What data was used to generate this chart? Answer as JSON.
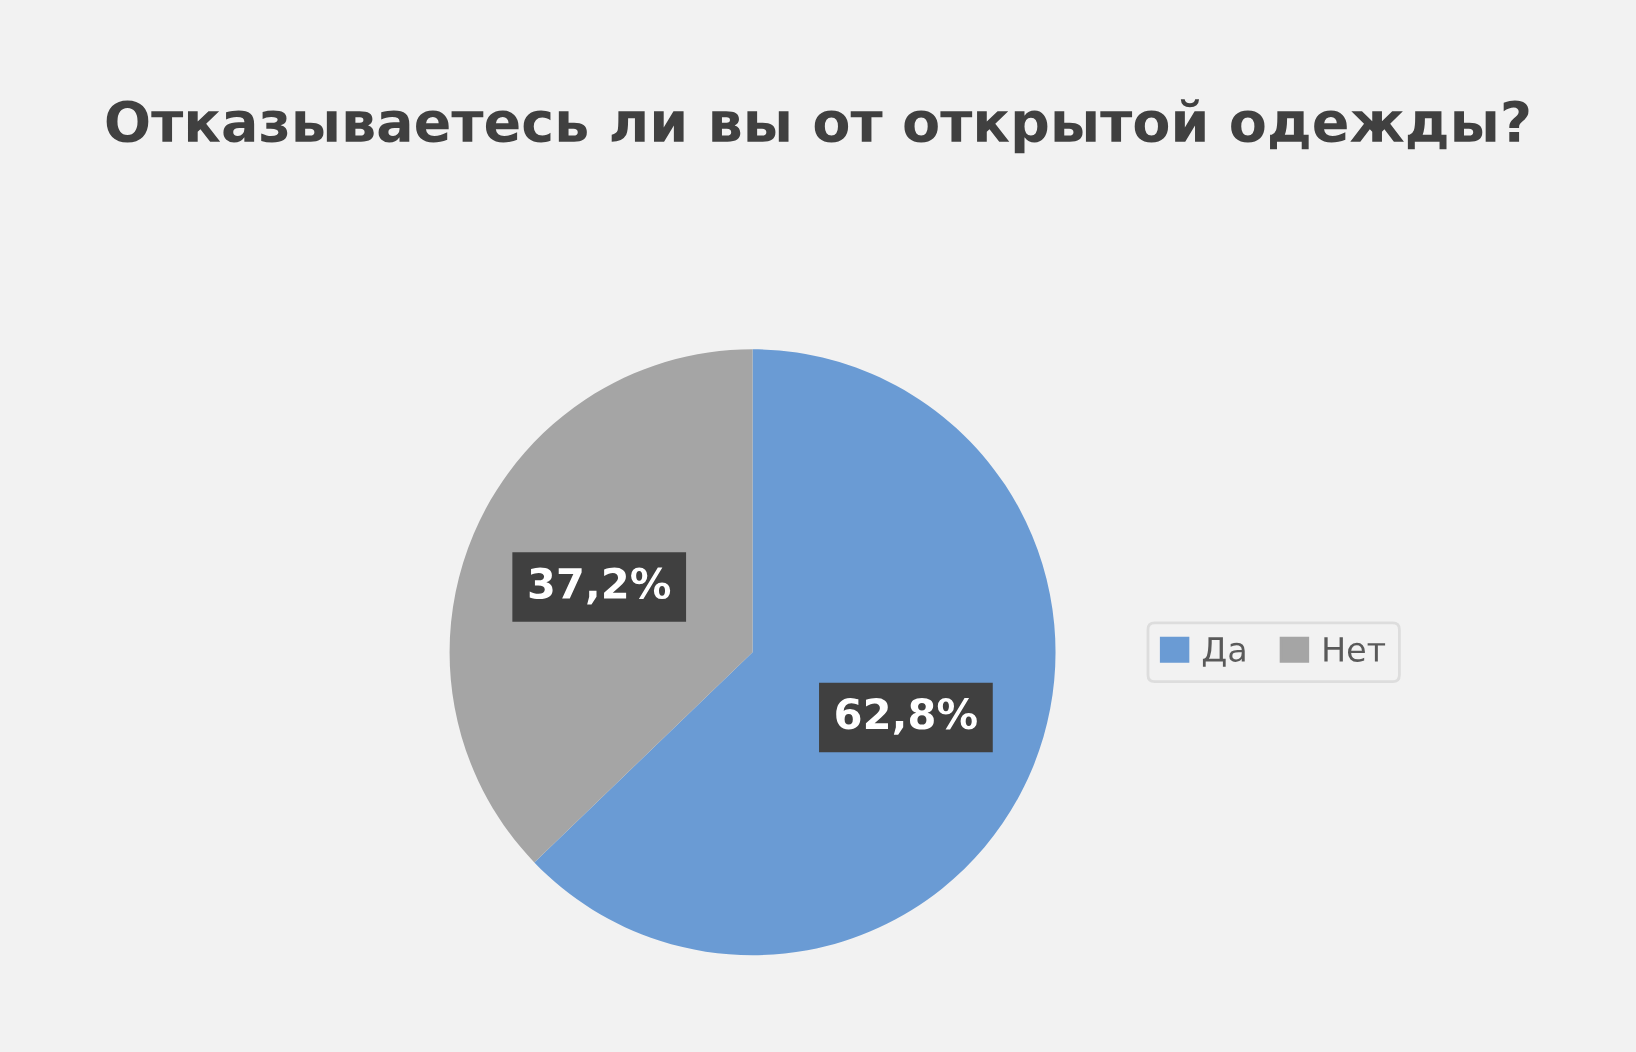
{
  "chart_data": {
    "type": "pie",
    "title": "Отказываетесь ли вы от открытой одежды?",
    "categories": [
      "Да",
      "Нет"
    ],
    "values": [
      62.8,
      37.2
    ],
    "colors": [
      "#6a9bd4",
      "#a5a5a5"
    ],
    "value_labels": [
      "62,8%",
      "37,2%"
    ],
    "legend": "right"
  }
}
